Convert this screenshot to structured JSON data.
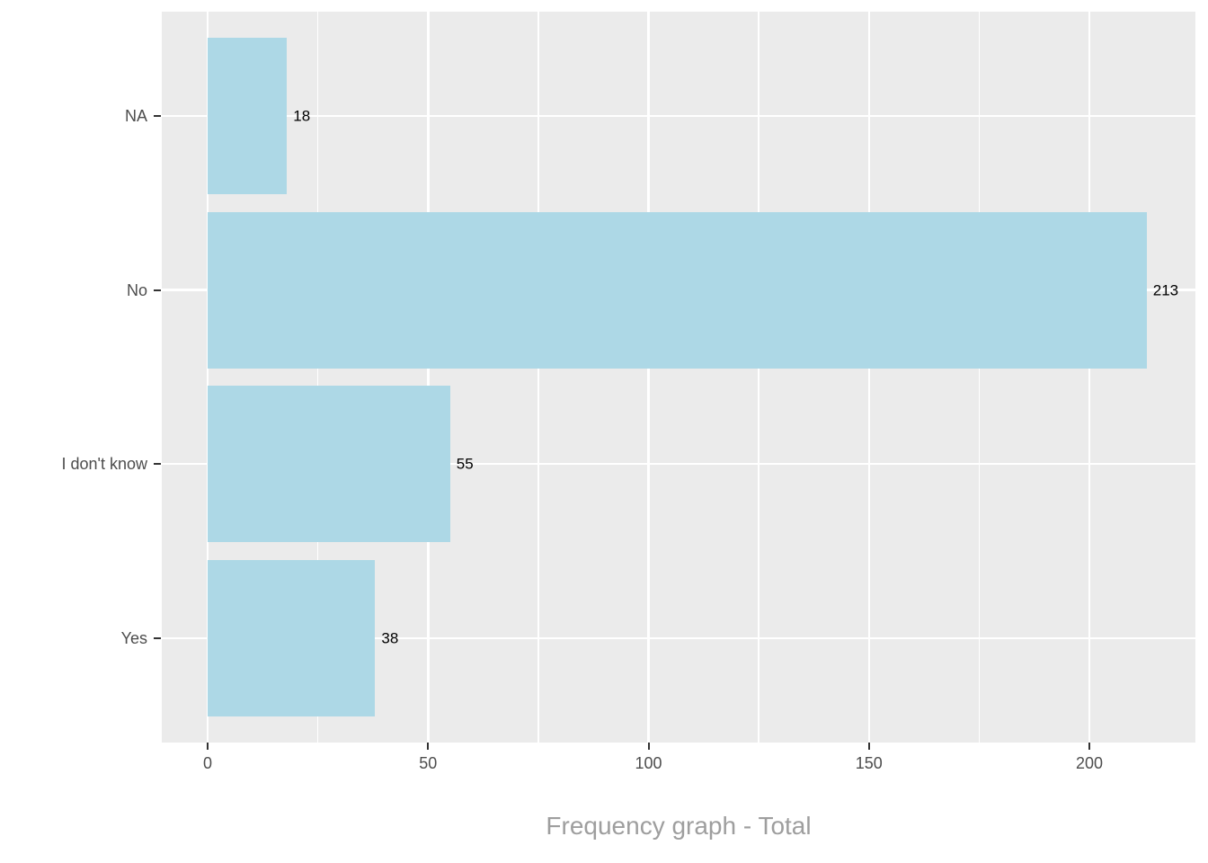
{
  "chart_data": {
    "type": "bar",
    "orientation": "horizontal",
    "title": "Frequency graph - Total",
    "categories": [
      "NA",
      "No",
      "I don't know",
      "Yes"
    ],
    "values": [
      18,
      213,
      55,
      38
    ],
    "bar_labels": [
      "18",
      "213",
      "55",
      "38"
    ],
    "x_ticks": [
      0,
      50,
      100,
      150,
      200
    ],
    "x_tick_labels": [
      "0",
      "50",
      "100",
      "150",
      "200"
    ],
    "x_minor_ticks": [
      25,
      75,
      125,
      175
    ],
    "xlim": [
      -10.65,
      223.65
    ],
    "xlabel": "Frequency graph - Total",
    "ylabel": "",
    "grid": "on",
    "legend": "none",
    "colors": {
      "bar_fill": "#ADD8E6",
      "panel_background": "#EBEBEB",
      "gridline": "#FFFFFF",
      "axis_text": "#4D4D4D",
      "tick_mark": "#333333",
      "bar_label_text": "#000000",
      "title_text": "#9E9E9E",
      "page_background": "#FFFFFF"
    }
  }
}
